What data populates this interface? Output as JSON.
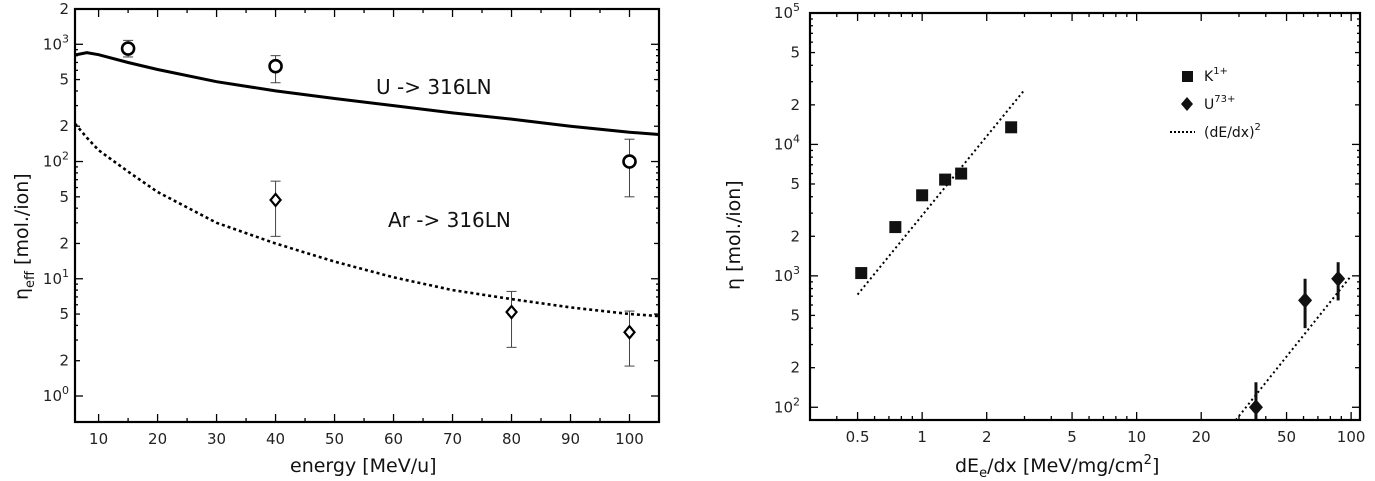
{
  "chart_data": [
    {
      "type": "scatter",
      "xlabel": "energy  [MeV/u]",
      "ylabel_main": "η",
      "ylabel_sub": "eff",
      "ylabel_rest": "  [mol./ion]",
      "xlim": [
        6,
        105
      ],
      "ylim": [
        0.6,
        2000
      ],
      "yscale": "log",
      "x_ticks": [
        "10",
        "20",
        "30",
        "40",
        "50",
        "60",
        "70",
        "80",
        "90",
        "100"
      ],
      "y_ticks": [
        {
          "v": 1,
          "m": "10",
          "e": "0"
        },
        {
          "v": 2,
          "m": "2",
          "e": ""
        },
        {
          "v": 5,
          "m": "5",
          "e": ""
        },
        {
          "v": 10,
          "m": "10",
          "e": "1"
        },
        {
          "v": 20,
          "m": "2",
          "e": ""
        },
        {
          "v": 50,
          "m": "5",
          "e": ""
        },
        {
          "v": 100,
          "m": "10",
          "e": "2"
        },
        {
          "v": 200,
          "m": "2",
          "e": ""
        },
        {
          "v": 500,
          "m": "5",
          "e": ""
        },
        {
          "v": 1000,
          "m": "10",
          "e": "3"
        },
        {
          "v": 2000,
          "m": "2",
          "e": ""
        }
      ],
      "annotations": [
        {
          "text": "U  ->  316LN",
          "x": 40,
          "y": 500
        },
        {
          "text": "Ar  ->  316LN",
          "x": 40,
          "y": 32
        }
      ],
      "series": [
        {
          "marker": "circle",
          "x": [
            15,
            40,
            100
          ],
          "y": [
            920,
            650,
            100
          ],
          "err_low": [
            780,
            470,
            50
          ],
          "err_high": [
            1080,
            800,
            155
          ]
        },
        {
          "marker": "diamond-open",
          "x": [
            40,
            80,
            100
          ],
          "y": [
            47,
            5.2,
            3.5
          ],
          "err_low": [
            23,
            2.6,
            1.8
          ],
          "err_high": [
            68,
            7.8,
            5.3
          ]
        },
        {
          "style": "solid-line",
          "x": [
            6,
            8,
            10,
            15,
            20,
            30,
            40,
            50,
            60,
            70,
            80,
            90,
            100,
            105
          ],
          "y": [
            810,
            850,
            815,
            700,
            610,
            480,
            400,
            345,
            300,
            260,
            230,
            200,
            178,
            170
          ]
        },
        {
          "style": "dotted-line",
          "x": [
            6,
            8,
            10,
            15,
            20,
            30,
            40,
            50,
            60,
            70,
            80,
            90,
            100,
            105
          ],
          "y": [
            210,
            160,
            125,
            82,
            55,
            30,
            20,
            14,
            10.3,
            8.0,
            6.7,
            5.7,
            5.0,
            4.8
          ]
        }
      ]
    },
    {
      "type": "scatter",
      "xlabel_pre": "dE",
      "xlabel_sub": "e",
      "xlabel_post": "/dx  [MeV/mg/cm",
      "xlabel_sup": "2",
      "xlabel_end": "]",
      "ylabel": "η  [mol./ion]",
      "xscale": "log",
      "yscale": "log",
      "xlim": [
        0.3,
        110
      ],
      "ylim": [
        80,
        100000
      ],
      "x_ticks": [
        "0.5",
        "1",
        "2",
        "5",
        "10",
        "20",
        "50",
        "100"
      ],
      "y_ticks": [
        {
          "v": 100,
          "m": "10",
          "e": "2"
        },
        {
          "v": 200,
          "m": "2",
          "e": ""
        },
        {
          "v": 500,
          "m": "5",
          "e": ""
        },
        {
          "v": 1000,
          "m": "10",
          "e": "3"
        },
        {
          "v": 2000,
          "m": "2",
          "e": ""
        },
        {
          "v": 5000,
          "m": "5",
          "e": ""
        },
        {
          "v": 10000,
          "m": "10",
          "e": "4"
        },
        {
          "v": 20000,
          "m": "2",
          "e": ""
        },
        {
          "v": 50000,
          "m": "5",
          "e": ""
        },
        {
          "v": 100000,
          "m": "10",
          "e": "5"
        }
      ],
      "legend": [
        {
          "marker": "square",
          "label": "K",
          "sup": "1+"
        },
        {
          "marker": "diamond",
          "label": "U",
          "sup": "73+"
        },
        {
          "marker": "dotted",
          "label": "(dE/dx)",
          "sup": "2"
        }
      ],
      "legend_position": "top-right",
      "series": [
        {
          "marker": "square",
          "x": [
            0.52,
            0.75,
            1.0,
            1.28,
            1.52,
            2.6
          ],
          "y": [
            1050,
            2350,
            4100,
            5400,
            6000,
            13500
          ]
        },
        {
          "marker": "diamond",
          "x": [
            36,
            61,
            87
          ],
          "y": [
            100,
            650,
            950
          ],
          "err_low": [
            80,
            400,
            650
          ],
          "err_high": [
            155,
            950,
            1270
          ]
        },
        {
          "style": "dotted-line",
          "x": [
            0.5,
            3.0
          ],
          "y": [
            720,
            26000
          ]
        },
        {
          "style": "dotted-line",
          "x": [
            29,
            100
          ],
          "y": [
            80,
            1000
          ]
        }
      ]
    }
  ]
}
